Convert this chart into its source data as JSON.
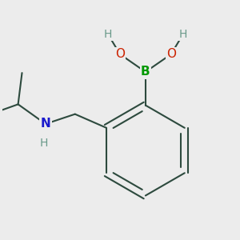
{
  "bg_color": "#ececec",
  "atom_colors": {
    "C": "#2d4a3e",
    "H": "#6a9a8a",
    "O": "#cc2200",
    "N": "#1a1acc",
    "B": "#009900"
  },
  "bond_color": "#2d4a3e",
  "bond_width": 1.5,
  "dbo": 0.018,
  "font_size_heavy": 11,
  "font_size_H": 10,
  "xlim": [
    -0.55,
    0.65
  ],
  "ylim": [
    -0.6,
    0.55
  ]
}
